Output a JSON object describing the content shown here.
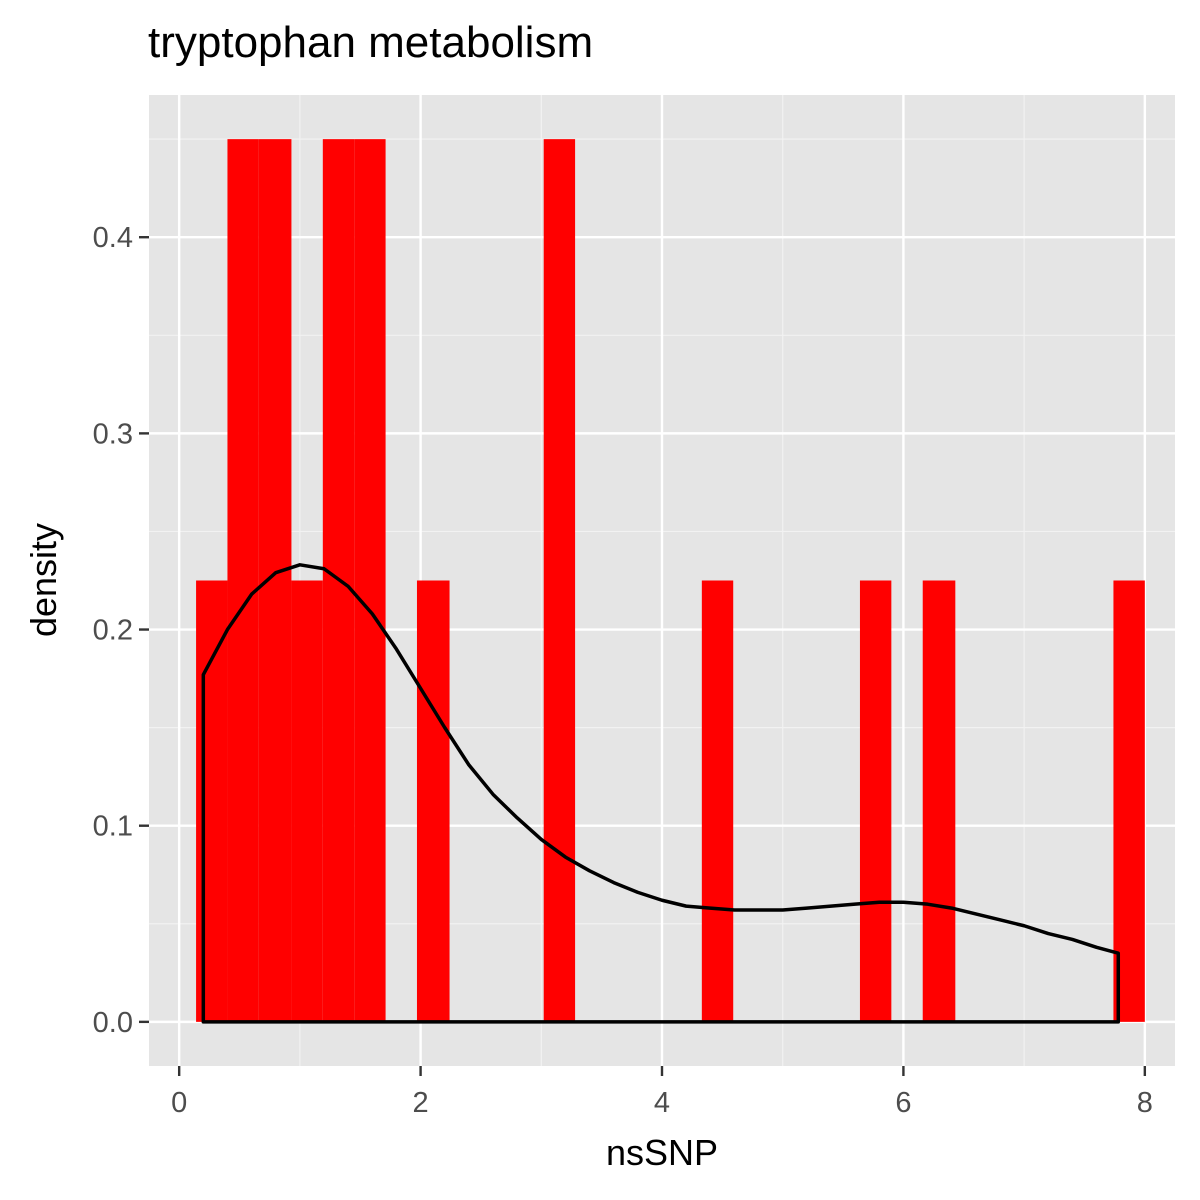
{
  "chart_data": {
    "type": "histogram",
    "title": "tryptophan metabolism",
    "xlabel": "nsSNP",
    "ylabel": "density",
    "xlim": [
      -0.25,
      8.25
    ],
    "ylim": [
      -0.0225,
      0.4725
    ],
    "x_ticks": [
      0,
      2,
      4,
      6,
      8
    ],
    "y_ticks": [
      0.0,
      0.1,
      0.2,
      0.3,
      0.4
    ],
    "x_tick_labels": [
      "0",
      "2",
      "4",
      "6",
      "8"
    ],
    "y_tick_labels": [
      "0.0",
      "0.1",
      "0.2",
      "0.3",
      "0.4"
    ],
    "grid": true,
    "bar_color": "#ff0000",
    "bin_width": 0.262,
    "bins": [
      {
        "x0": 0.14,
        "x1": 0.4,
        "density": 0.225
      },
      {
        "x0": 0.4,
        "x1": 0.66,
        "density": 0.45
      },
      {
        "x0": 0.66,
        "x1": 0.93,
        "density": 0.45
      },
      {
        "x0": 0.93,
        "x1": 1.19,
        "density": 0.225
      },
      {
        "x0": 1.19,
        "x1": 1.45,
        "density": 0.45
      },
      {
        "x0": 1.45,
        "x1": 1.71,
        "density": 0.45
      },
      {
        "x0": 1.97,
        "x1": 2.24,
        "density": 0.225
      },
      {
        "x0": 3.02,
        "x1": 3.28,
        "density": 0.45
      },
      {
        "x0": 4.33,
        "x1": 4.59,
        "density": 0.225
      },
      {
        "x0": 5.64,
        "x1": 5.9,
        "density": 0.225
      },
      {
        "x0": 6.16,
        "x1": 6.43,
        "density": 0.225
      },
      {
        "x0": 7.74,
        "x1": 8.0,
        "density": 0.225
      }
    ],
    "density_curve": {
      "color": "#000000",
      "x": [
        0.2,
        0.4,
        0.6,
        0.8,
        1.0,
        1.2,
        1.4,
        1.6,
        1.8,
        2.0,
        2.2,
        2.4,
        2.6,
        2.8,
        3.0,
        3.2,
        3.4,
        3.6,
        3.8,
        4.0,
        4.2,
        4.4,
        4.6,
        4.8,
        5.0,
        5.2,
        5.4,
        5.6,
        5.8,
        6.0,
        6.2,
        6.4,
        6.6,
        6.8,
        7.0,
        7.2,
        7.4,
        7.6,
        7.78
      ],
      "y": [
        0.177,
        0.2,
        0.218,
        0.229,
        0.233,
        0.231,
        0.222,
        0.208,
        0.19,
        0.17,
        0.15,
        0.131,
        0.116,
        0.104,
        0.093,
        0.084,
        0.077,
        0.071,
        0.066,
        0.062,
        0.059,
        0.058,
        0.057,
        0.057,
        0.057,
        0.058,
        0.059,
        0.06,
        0.061,
        0.061,
        0.06,
        0.058,
        0.055,
        0.052,
        0.049,
        0.045,
        0.042,
        0.038,
        0.035
      ]
    }
  }
}
